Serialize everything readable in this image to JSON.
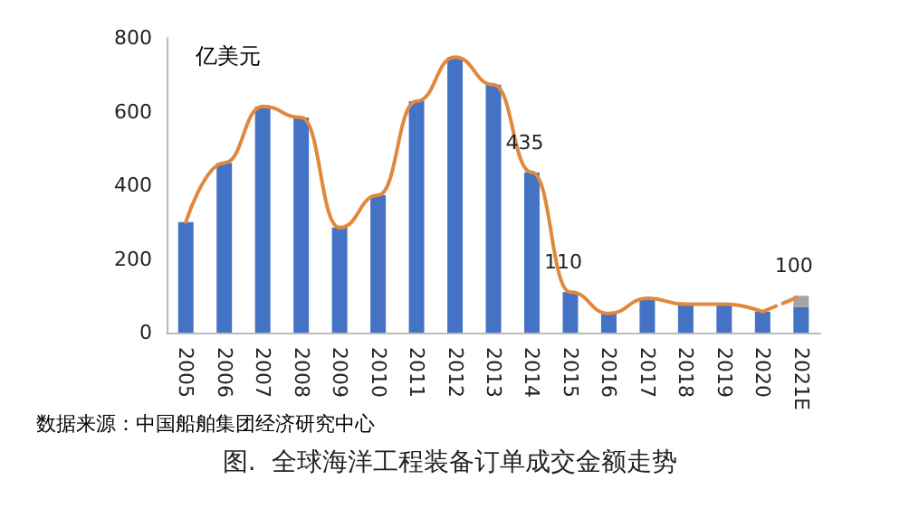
{
  "chart_data": {
    "type": "bar",
    "title": "图.  全球海洋工程装备订单成交金额走势",
    "ylabel": "亿美元",
    "annotations": [
      "数据来源：中国船舶集团经济研究中心"
    ],
    "categories": [
      "2005",
      "2006",
      "2007",
      "2008",
      "2009",
      "2010",
      "2011",
      "2012",
      "2013",
      "2014",
      "2015",
      "2016",
      "2017",
      "2018",
      "2019",
      "2020",
      "2021E"
    ],
    "stacked": true,
    "ylim": [
      0,
      800
    ],
    "yticks": [
      0,
      200,
      400,
      600,
      800
    ],
    "grid": false,
    "marker": "none",
    "series": [
      {
        "color": "#4472c4",
        "values": [
          300,
          461,
          614,
          584,
          285,
          373,
          628,
          748,
          673,
          435,
          110,
          52,
          93,
          77,
          77,
          57,
          69
        ]
      },
      {
        "color": "#a5a5a5",
        "values": [
          null,
          null,
          null,
          null,
          null,
          null,
          null,
          null,
          null,
          null,
          null,
          null,
          null,
          null,
          null,
          null,
          31
        ]
      },
      {
        "type": "line",
        "color": "#e0883e",
        "line_style": "solid",
        "values": [
          300,
          461,
          614,
          584,
          285,
          373,
          628,
          748,
          673,
          435,
          110,
          52,
          93,
          77,
          77,
          57,
          null
        ],
        "value_labels": [
          null,
          null,
          null,
          null,
          null,
          null,
          null,
          null,
          null,
          "435",
          "110",
          null,
          null,
          null,
          null,
          null,
          null
        ]
      },
      {
        "type": "line",
        "color": "#e0883e",
        "line_style": "dashed",
        "values": [
          null,
          null,
          null,
          null,
          null,
          null,
          null,
          null,
          null,
          null,
          null,
          null,
          null,
          null,
          null,
          57,
          100
        ],
        "value_labels": [
          null,
          null,
          null,
          null,
          null,
          null,
          null,
          null,
          null,
          null,
          null,
          null,
          null,
          null,
          null,
          null,
          "100"
        ]
      }
    ]
  }
}
